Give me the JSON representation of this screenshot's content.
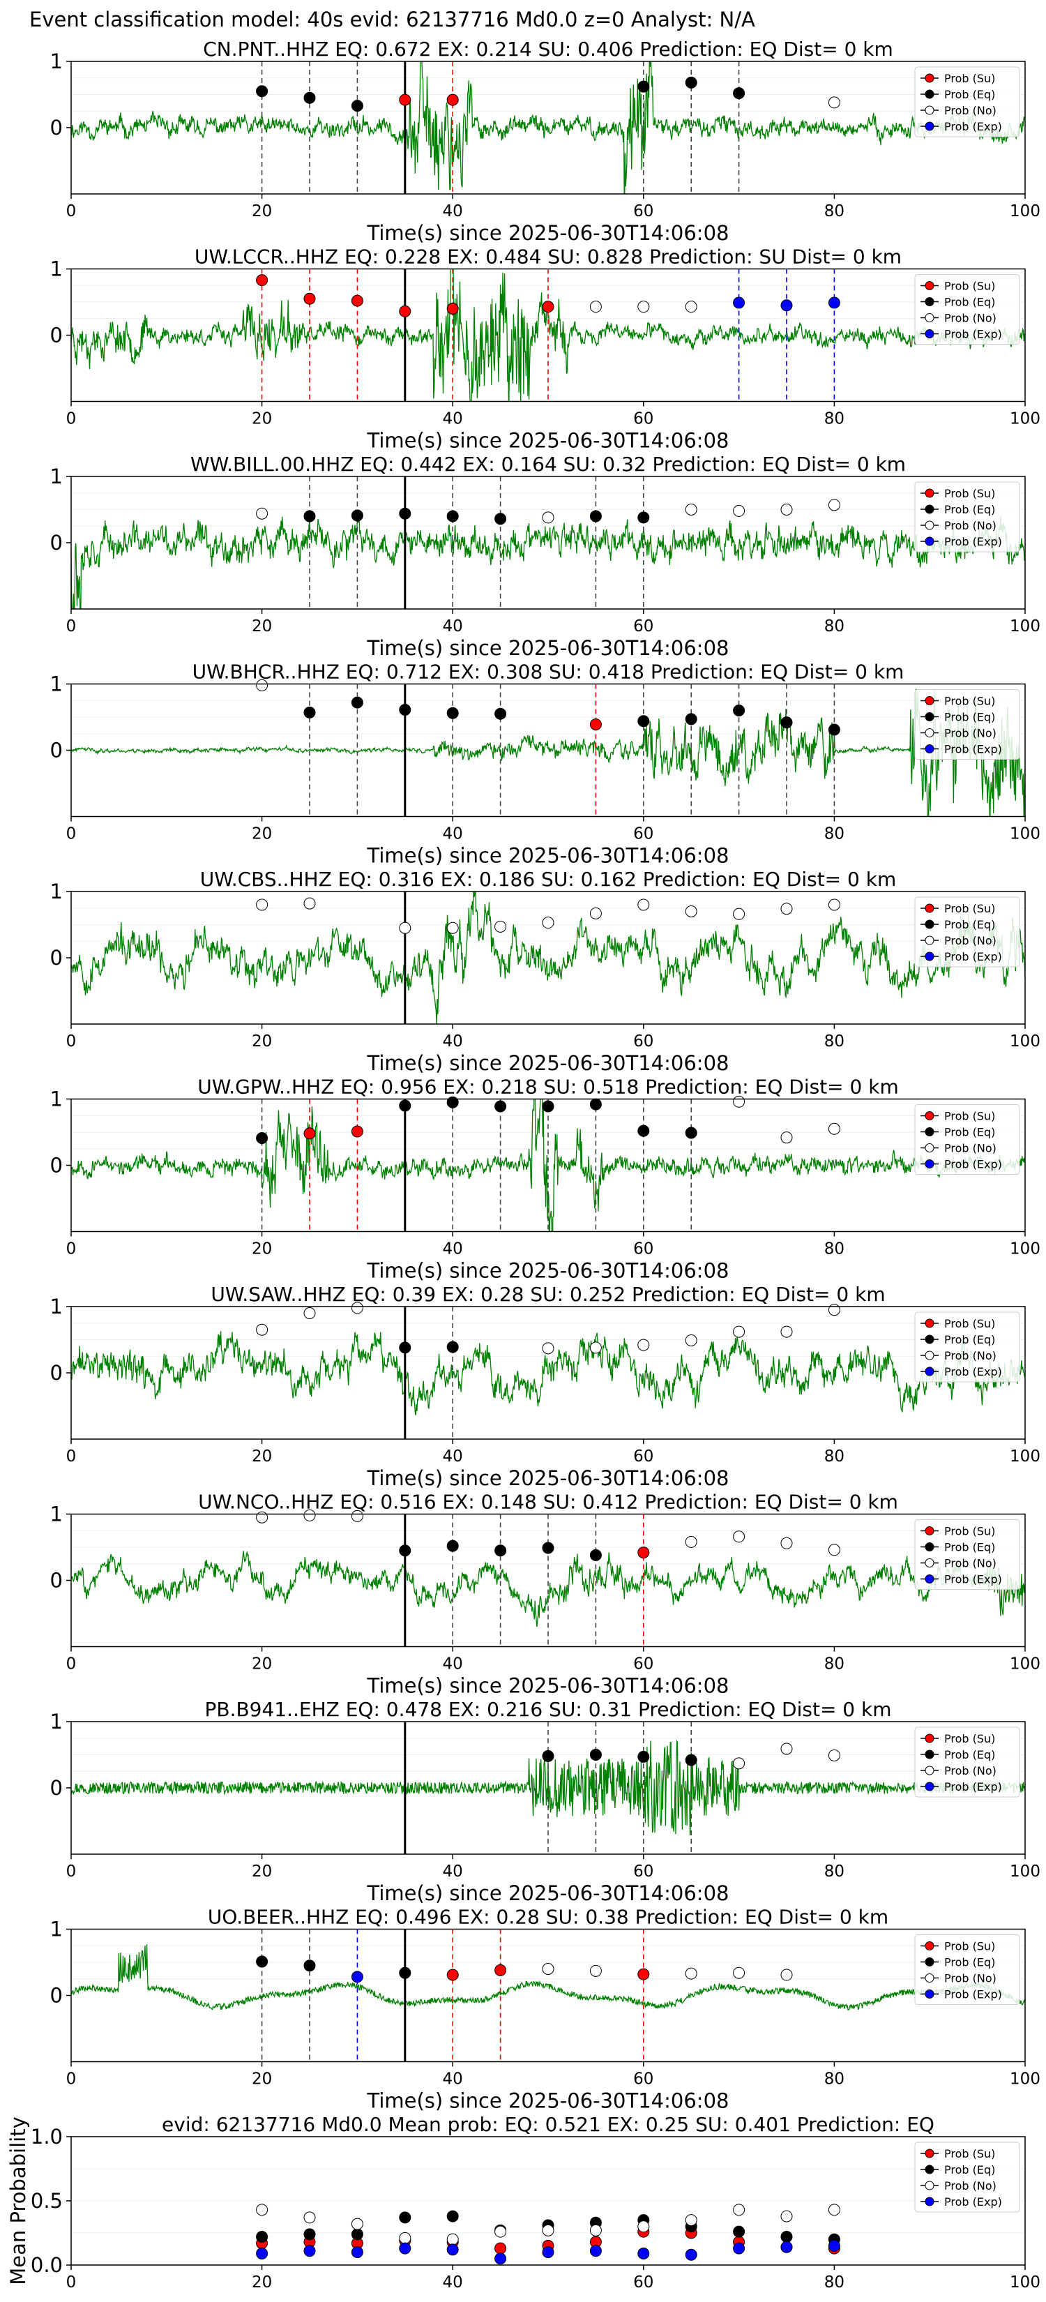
{
  "figure": {
    "suptitle": "Event classification model: 40s evid: 62137716 Md0.0 z=0 Analyst: N/A"
  },
  "legend_labels": [
    "Prob (Su)",
    "Prob (Eq)",
    "Prob (No)",
    "Prob (Exp)"
  ],
  "colors": {
    "trace": "#008000",
    "su": "#ff0000",
    "eq": "#000000",
    "no": "#ffffff",
    "exp": "#0000ff"
  },
  "chart_data": [
    {
      "type": "line",
      "title": "CN.PNT..HHZ   EQ: 0.672  EX: 0.214  SU: 0.406   Prediction: EQ    Dist= 0 km",
      "xlabel": "Time(s) since 2025-06-30T14:06:08",
      "xlim": [
        0,
        100
      ],
      "ylim": [
        -1,
        1
      ],
      "xticks": [
        "0",
        "20",
        "40",
        "60",
        "80",
        "100"
      ],
      "yticks": [
        "1",
        "0"
      ],
      "onset_line_x": 35,
      "trace": {
        "amp": 0.13,
        "seed": 11,
        "style": "smooth",
        "bursts": [
          [
            35,
            42,
            0.7
          ],
          [
            58,
            61,
            0.85
          ]
        ]
      },
      "windows": [
        {
          "x": 20,
          "y": 0.55,
          "class": "eq"
        },
        {
          "x": 25,
          "y": 0.45,
          "class": "eq"
        },
        {
          "x": 30,
          "y": 0.33,
          "class": "eq"
        },
        {
          "x": 35,
          "y": 0.42,
          "class": "su"
        },
        {
          "x": 40,
          "y": 0.42,
          "class": "su"
        },
        {
          "x": 60,
          "y": 0.62,
          "class": "eq"
        },
        {
          "x": 65,
          "y": 0.68,
          "class": "eq"
        },
        {
          "x": 70,
          "y": 0.52,
          "class": "eq"
        },
        {
          "x": 80,
          "y": 0.38,
          "class": "no"
        }
      ]
    },
    {
      "type": "line",
      "title": "UW.LCCR..HHZ   EQ: 0.228  EX: 0.484  SU: 0.828   Prediction: SU    Dist= 0 km",
      "xlabel": "Time(s) since 2025-06-30T14:06:08",
      "xlim": [
        0,
        100
      ],
      "ylim": [
        -1,
        1
      ],
      "xticks": [
        "0",
        "20",
        "40",
        "60",
        "80",
        "100"
      ],
      "yticks": [
        "1",
        "0"
      ],
      "onset_line_x": 35,
      "trace": {
        "amp": 0.12,
        "seed": 23,
        "style": "smooth",
        "bursts": [
          [
            0,
            8,
            0.25
          ],
          [
            18,
            24,
            0.35
          ],
          [
            38,
            48,
            0.9
          ],
          [
            48,
            52,
            0.35
          ]
        ]
      },
      "windows": [
        {
          "x": 20,
          "y": 0.83,
          "class": "su"
        },
        {
          "x": 25,
          "y": 0.55,
          "class": "su"
        },
        {
          "x": 30,
          "y": 0.52,
          "class": "su"
        },
        {
          "x": 35,
          "y": 0.36,
          "class": "su"
        },
        {
          "x": 40,
          "y": 0.4,
          "class": "su"
        },
        {
          "x": 50,
          "y": 0.43,
          "class": "su"
        },
        {
          "x": 55,
          "y": 0.43,
          "class": "no"
        },
        {
          "x": 60,
          "y": 0.43,
          "class": "no"
        },
        {
          "x": 65,
          "y": 0.43,
          "class": "no"
        },
        {
          "x": 70,
          "y": 0.49,
          "class": "exp"
        },
        {
          "x": 75,
          "y": 0.45,
          "class": "exp"
        },
        {
          "x": 80,
          "y": 0.49,
          "class": "exp"
        }
      ]
    },
    {
      "type": "line",
      "title": "WW.BILL.00.HHZ   EQ: 0.442  EX: 0.164  SU: 0.32   Prediction: EQ    Dist= 0 km",
      "xlabel": "Time(s) since 2025-06-30T14:06:08",
      "xlim": [
        0,
        100
      ],
      "ylim": [
        -1,
        1
      ],
      "xticks": [
        "0",
        "20",
        "40",
        "60",
        "80",
        "100"
      ],
      "yticks": [
        "1",
        "0"
      ],
      "onset_line_x": 35,
      "trace": {
        "amp": 0.22,
        "seed": 37,
        "style": "smooth",
        "bursts": [
          [
            0,
            1,
            1.0
          ],
          [
            35,
            45,
            0.2
          ]
        ]
      },
      "windows": [
        {
          "x": 20,
          "y": 0.44,
          "class": "no"
        },
        {
          "x": 25,
          "y": 0.4,
          "class": "eq"
        },
        {
          "x": 30,
          "y": 0.41,
          "class": "eq"
        },
        {
          "x": 35,
          "y": 0.44,
          "class": "eq"
        },
        {
          "x": 40,
          "y": 0.4,
          "class": "eq"
        },
        {
          "x": 45,
          "y": 0.36,
          "class": "eq"
        },
        {
          "x": 50,
          "y": 0.38,
          "class": "no"
        },
        {
          "x": 55,
          "y": 0.4,
          "class": "eq"
        },
        {
          "x": 60,
          "y": 0.38,
          "class": "eq"
        },
        {
          "x": 65,
          "y": 0.5,
          "class": "no"
        },
        {
          "x": 70,
          "y": 0.48,
          "class": "no"
        },
        {
          "x": 75,
          "y": 0.5,
          "class": "no"
        },
        {
          "x": 80,
          "y": 0.57,
          "class": "no"
        }
      ]
    },
    {
      "type": "line",
      "title": "UW.BHCR..HHZ   EQ: 0.712  EX: 0.308  SU: 0.418   Prediction: EQ    Dist= 0 km",
      "xlabel": "Time(s) since 2025-06-30T14:06:08",
      "xlim": [
        0,
        100
      ],
      "ylim": [
        -1,
        1
      ],
      "xticks": [
        "0",
        "20",
        "40",
        "60",
        "80",
        "100"
      ],
      "yticks": [
        "1",
        "0"
      ],
      "onset_line_x": 35,
      "trace": {
        "amp": 0.03,
        "seed": 41,
        "style": "smooth",
        "bursts": [
          [
            38,
            60,
            0.12
          ],
          [
            60,
            80,
            0.35
          ],
          [
            88,
            100,
            0.7
          ]
        ]
      },
      "windows": [
        {
          "x": 20,
          "y": 0.98,
          "class": "no"
        },
        {
          "x": 25,
          "y": 0.57,
          "class": "eq"
        },
        {
          "x": 30,
          "y": 0.72,
          "class": "eq"
        },
        {
          "x": 35,
          "y": 0.61,
          "class": "eq"
        },
        {
          "x": 40,
          "y": 0.56,
          "class": "eq"
        },
        {
          "x": 45,
          "y": 0.55,
          "class": "eq"
        },
        {
          "x": 55,
          "y": 0.39,
          "class": "su"
        },
        {
          "x": 60,
          "y": 0.44,
          "class": "eq"
        },
        {
          "x": 65,
          "y": 0.47,
          "class": "eq"
        },
        {
          "x": 70,
          "y": 0.6,
          "class": "eq"
        },
        {
          "x": 75,
          "y": 0.42,
          "class": "eq"
        },
        {
          "x": 80,
          "y": 0.31,
          "class": "eq"
        }
      ]
    },
    {
      "type": "line",
      "title": "UW.CBS..HHZ   EQ: 0.316  EX: 0.186  SU: 0.162   Prediction: EQ    Dist= 0 km",
      "xlabel": "Time(s) since 2025-06-30T14:06:08",
      "xlim": [
        0,
        100
      ],
      "ylim": [
        -1,
        1
      ],
      "xticks": [
        "0",
        "20",
        "40",
        "60",
        "80",
        "100"
      ],
      "yticks": [
        "1",
        "0"
      ],
      "onset_line_x": 35,
      "trace": {
        "amp": 0.38,
        "seed": 53,
        "style": "rough",
        "bursts": [
          [
            38,
            44,
            0.6
          ],
          [
            92,
            100,
            0.5
          ]
        ]
      },
      "windows": [
        {
          "x": 20,
          "y": 0.8,
          "class": "no"
        },
        {
          "x": 25,
          "y": 0.82,
          "class": "no"
        },
        {
          "x": 35,
          "y": 0.45,
          "class": "no"
        },
        {
          "x": 40,
          "y": 0.45,
          "class": "no"
        },
        {
          "x": 45,
          "y": 0.47,
          "class": "no"
        },
        {
          "x": 50,
          "y": 0.53,
          "class": "no"
        },
        {
          "x": 55,
          "y": 0.67,
          "class": "no"
        },
        {
          "x": 60,
          "y": 0.8,
          "class": "no"
        },
        {
          "x": 65,
          "y": 0.7,
          "class": "no"
        },
        {
          "x": 70,
          "y": 0.66,
          "class": "no"
        },
        {
          "x": 75,
          "y": 0.74,
          "class": "no"
        },
        {
          "x": 80,
          "y": 0.8,
          "class": "no"
        }
      ]
    },
    {
      "type": "line",
      "title": "UW.GPW..HHZ   EQ: 0.956  EX: 0.218  SU: 0.518   Prediction: EQ    Dist= 0 km",
      "xlabel": "Time(s) since 2025-06-30T14:06:08",
      "xlim": [
        0,
        100
      ],
      "ylim": [
        -1,
        1
      ],
      "xticks": [
        "0",
        "20",
        "40",
        "60",
        "80",
        "100"
      ],
      "yticks": [
        "1",
        "0"
      ],
      "onset_line_x": 35,
      "trace": {
        "amp": 0.12,
        "seed": 67,
        "style": "smooth",
        "bursts": [
          [
            20,
            27,
            0.45
          ],
          [
            48,
            51,
            1.0
          ],
          [
            53,
            56,
            0.4
          ]
        ]
      },
      "windows": [
        {
          "x": 20,
          "y": 0.41,
          "class": "eq"
        },
        {
          "x": 25,
          "y": 0.48,
          "class": "su"
        },
        {
          "x": 30,
          "y": 0.51,
          "class": "su"
        },
        {
          "x": 35,
          "y": 0.9,
          "class": "eq"
        },
        {
          "x": 40,
          "y": 0.95,
          "class": "eq"
        },
        {
          "x": 45,
          "y": 0.89,
          "class": "eq"
        },
        {
          "x": 50,
          "y": 0.89,
          "class": "eq"
        },
        {
          "x": 55,
          "y": 0.92,
          "class": "eq"
        },
        {
          "x": 60,
          "y": 0.52,
          "class": "eq"
        },
        {
          "x": 65,
          "y": 0.49,
          "class": "eq"
        },
        {
          "x": 70,
          "y": 0.96,
          "class": "no"
        },
        {
          "x": 75,
          "y": 0.42,
          "class": "no"
        },
        {
          "x": 80,
          "y": 0.55,
          "class": "no"
        }
      ]
    },
    {
      "type": "line",
      "title": "UW.SAW..HHZ   EQ: 0.39  EX: 0.28  SU: 0.252   Prediction: EQ    Dist= 0 km",
      "xlabel": "Time(s) since 2025-06-30T14:06:08",
      "xlim": [
        0,
        100
      ],
      "ylim": [
        -1,
        1
      ],
      "xticks": [
        "0",
        "20",
        "40",
        "60",
        "80",
        "100"
      ],
      "yticks": [
        "1",
        "0"
      ],
      "onset_line_x": 35,
      "trace": {
        "amp": 0.35,
        "seed": 71,
        "style": "rough",
        "bursts": [
          [
            6,
            12,
            0.4
          ],
          [
            52,
            58,
            0.4
          ]
        ]
      },
      "windows": [
        {
          "x": 20,
          "y": 0.65,
          "class": "no"
        },
        {
          "x": 25,
          "y": 0.9,
          "class": "no"
        },
        {
          "x": 30,
          "y": 0.98,
          "class": "no"
        },
        {
          "x": 35,
          "y": 0.38,
          "class": "eq"
        },
        {
          "x": 40,
          "y": 0.39,
          "class": "eq"
        },
        {
          "x": 50,
          "y": 0.37,
          "class": "no"
        },
        {
          "x": 55,
          "y": 0.38,
          "class": "no"
        },
        {
          "x": 60,
          "y": 0.42,
          "class": "no"
        },
        {
          "x": 65,
          "y": 0.49,
          "class": "no"
        },
        {
          "x": 70,
          "y": 0.62,
          "class": "no"
        },
        {
          "x": 75,
          "y": 0.62,
          "class": "no"
        },
        {
          "x": 80,
          "y": 0.95,
          "class": "no"
        }
      ]
    },
    {
      "type": "line",
      "title": "UW.NCO..HHZ   EQ: 0.516  EX: 0.148  SU: 0.412   Prediction: EQ    Dist= 0 km",
      "xlabel": "Time(s) since 2025-06-30T14:06:08",
      "xlim": [
        0,
        100
      ],
      "ylim": [
        -1,
        1
      ],
      "xticks": [
        "0",
        "20",
        "40",
        "60",
        "80",
        "100"
      ],
      "yticks": [
        "1",
        "0"
      ],
      "onset_line_x": 35,
      "trace": {
        "amp": 0.24,
        "seed": 83,
        "style": "rough",
        "bursts": [
          [
            48,
            58,
            0.35
          ],
          [
            96,
            100,
            0.6
          ]
        ]
      },
      "windows": [
        {
          "x": 20,
          "y": 0.95,
          "class": "no"
        },
        {
          "x": 25,
          "y": 0.98,
          "class": "no"
        },
        {
          "x": 30,
          "y": 0.97,
          "class": "no"
        },
        {
          "x": 35,
          "y": 0.45,
          "class": "eq"
        },
        {
          "x": 40,
          "y": 0.52,
          "class": "eq"
        },
        {
          "x": 45,
          "y": 0.45,
          "class": "eq"
        },
        {
          "x": 50,
          "y": 0.49,
          "class": "eq"
        },
        {
          "x": 55,
          "y": 0.38,
          "class": "eq"
        },
        {
          "x": 60,
          "y": 0.42,
          "class": "su"
        },
        {
          "x": 65,
          "y": 0.58,
          "class": "no"
        },
        {
          "x": 70,
          "y": 0.66,
          "class": "no"
        },
        {
          "x": 75,
          "y": 0.56,
          "class": "no"
        },
        {
          "x": 80,
          "y": 0.46,
          "class": "no"
        }
      ]
    },
    {
      "type": "line",
      "title": "PB.B941..EHZ   EQ: 0.478  EX: 0.216  SU: 0.31   Prediction: EQ    Dist= 0 km",
      "xlabel": "Time(s) since 2025-06-30T14:06:08",
      "xlim": [
        0,
        100
      ],
      "ylim": [
        -1,
        1
      ],
      "xticks": [
        "0",
        "20",
        "40",
        "60",
        "80",
        "100"
      ],
      "yticks": [
        "1",
        "0"
      ],
      "onset_line_x": 35,
      "trace": {
        "amp": 0.1,
        "seed": 97,
        "style": "hf",
        "bursts": [
          [
            48,
            70,
            0.5
          ],
          [
            60,
            65,
            0.8
          ]
        ]
      },
      "windows": [
        {
          "x": 50,
          "y": 0.48,
          "class": "eq"
        },
        {
          "x": 55,
          "y": 0.5,
          "class": "eq"
        },
        {
          "x": 60,
          "y": 0.47,
          "class": "eq"
        },
        {
          "x": 65,
          "y": 0.42,
          "class": "eq"
        },
        {
          "x": 70,
          "y": 0.37,
          "class": "no"
        },
        {
          "x": 75,
          "y": 0.59,
          "class": "no"
        },
        {
          "x": 80,
          "y": 0.49,
          "class": "no"
        }
      ]
    },
    {
      "type": "line",
      "title": "UO.BEER..HHZ   EQ: 0.496  EX: 0.28  SU: 0.38   Prediction: EQ    Dist= 0 km",
      "xlabel": "Time(s) since 2025-06-30T14:06:08",
      "xlim": [
        0,
        100
      ],
      "ylim": [
        -1,
        1
      ],
      "xticks": [
        "0",
        "20",
        "40",
        "60",
        "80",
        "100"
      ],
      "yticks": [
        "1",
        "0"
      ],
      "onset_line_x": 35,
      "trace": {
        "amp": 0.18,
        "seed": 109,
        "style": "wave",
        "bursts": [
          [
            5,
            8,
            1.0
          ]
        ]
      },
      "windows": [
        {
          "x": 20,
          "y": 0.51,
          "class": "eq"
        },
        {
          "x": 25,
          "y": 0.45,
          "class": "eq"
        },
        {
          "x": 30,
          "y": 0.28,
          "class": "exp"
        },
        {
          "x": 35,
          "y": 0.34,
          "class": "eq"
        },
        {
          "x": 40,
          "y": 0.31,
          "class": "su"
        },
        {
          "x": 45,
          "y": 0.38,
          "class": "su"
        },
        {
          "x": 50,
          "y": 0.4,
          "class": "no"
        },
        {
          "x": 55,
          "y": 0.37,
          "class": "no"
        },
        {
          "x": 60,
          "y": 0.32,
          "class": "su"
        },
        {
          "x": 65,
          "y": 0.33,
          "class": "no"
        },
        {
          "x": 70,
          "y": 0.34,
          "class": "no"
        },
        {
          "x": 75,
          "y": 0.31,
          "class": "no"
        }
      ]
    },
    {
      "type": "scatter",
      "title": "evid: 62137716  Md0.0   Mean prob:    EQ: 0.521  EX: 0.25  SU: 0.401   Prediction: EQ",
      "ylabel": "Mean Probability",
      "xlim": [
        0,
        100
      ],
      "ylim": [
        0,
        1
      ],
      "xticks": [
        "0",
        "20",
        "40",
        "60",
        "80",
        "100"
      ],
      "yticks": [
        "0.0",
        "0.5",
        "1.0"
      ],
      "x": [
        20,
        25,
        30,
        35,
        40,
        45,
        50,
        55,
        60,
        65,
        70,
        75,
        80
      ],
      "series": [
        {
          "name": "Prob (Su)",
          "class": "su",
          "values": [
            0.17,
            0.18,
            0.17,
            0.19,
            0.18,
            0.13,
            0.15,
            0.18,
            0.26,
            0.25,
            0.18,
            0.14,
            0.13
          ]
        },
        {
          "name": "Prob (Eq)",
          "class": "eq",
          "values": [
            0.22,
            0.24,
            0.24,
            0.37,
            0.38,
            0.27,
            0.31,
            0.33,
            0.35,
            0.3,
            0.26,
            0.22,
            0.2
          ]
        },
        {
          "name": "Prob (No)",
          "class": "no",
          "values": [
            0.43,
            0.37,
            0.32,
            0.21,
            0.2,
            0.26,
            0.27,
            0.27,
            0.3,
            0.35,
            0.43,
            0.38,
            0.43
          ]
        },
        {
          "name": "Prob (Exp)",
          "class": "exp",
          "values": [
            0.09,
            0.11,
            0.1,
            0.13,
            0.12,
            0.05,
            0.1,
            0.11,
            0.09,
            0.08,
            0.13,
            0.14,
            0.15
          ]
        }
      ]
    }
  ]
}
